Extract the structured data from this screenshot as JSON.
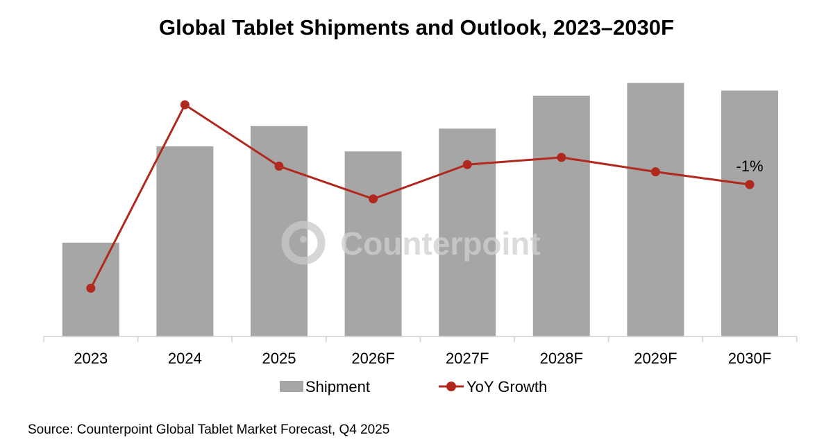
{
  "chart_data": {
    "type": "bar",
    "title": "Global Tablet Shipments and Outlook, 2023–2030F",
    "categories": [
      "2023",
      "2024",
      "2025",
      "2026F",
      "2027F",
      "2028F",
      "2029F",
      "2030F"
    ],
    "series": [
      {
        "name": "Shipment",
        "kind": "bar",
        "color": "#a6a6a6",
        "unit": "relative index (2029F = 100, no axis shown)",
        "values": [
          37,
          75,
          83,
          73,
          82,
          95,
          100,
          97
        ]
      },
      {
        "name": "YoY Growth",
        "kind": "line",
        "color": "#b0281e",
        "unit": "%",
        "values": [
          -14,
          9,
          1.3,
          -2.8,
          1.5,
          2.4,
          0.6,
          -1
        ]
      }
    ],
    "data_labels": [
      {
        "category": "2030F",
        "series": "YoY Growth",
        "text": "-1%"
      }
    ],
    "xlabel": "",
    "ylabel": "",
    "shipment_ylim": [
      0,
      104
    ],
    "growth_ylim": [
      -16,
      13
    ],
    "grid": false,
    "legend": "bottom-center",
    "legend_entries": [
      "Shipment",
      "YoY Growth"
    ],
    "watermark": "Counterpoint"
  },
  "source": "Source: Counterpoint Global Tablet Market Forecast, Q4 2025"
}
